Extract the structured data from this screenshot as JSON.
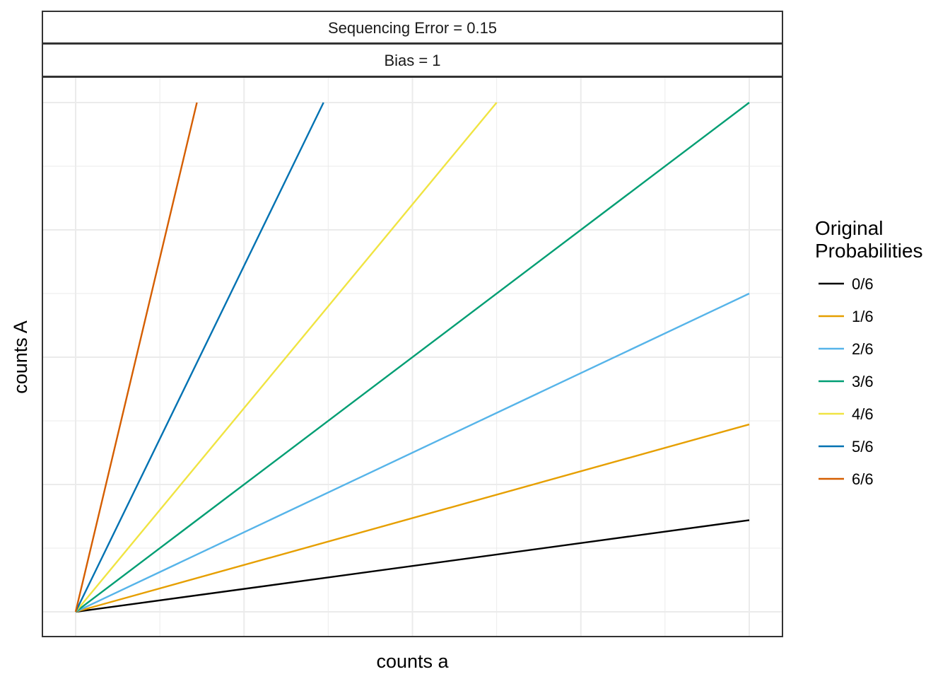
{
  "facets": {
    "top_strip": "Sequencing Error = 0.15",
    "bottom_strip": "Bias = 1"
  },
  "chart_data": {
    "type": "line",
    "xlabel": "counts a",
    "ylabel": "counts A",
    "xlim": [
      0,
      1
    ],
    "ylim": [
      0,
      1
    ],
    "grid": true,
    "legend_position": "right",
    "legend": {
      "title_lines": [
        "Original",
        "Probabilities"
      ]
    },
    "series": [
      {
        "name": "0/6",
        "color": "#000000",
        "x": [
          0,
          1
        ],
        "y": [
          0,
          0.18
        ]
      },
      {
        "name": "1/6",
        "color": "#E69F00",
        "x": [
          0,
          1
        ],
        "y": [
          0,
          0.368
        ]
      },
      {
        "name": "2/6",
        "color": "#56B4E9",
        "x": [
          0,
          1
        ],
        "y": [
          0,
          0.625
        ]
      },
      {
        "name": "3/6",
        "color": "#009E73",
        "x": [
          0,
          1
        ],
        "y": [
          0,
          1
        ]
      },
      {
        "name": "4/6",
        "color": "#F0E442",
        "x": [
          0,
          0.625
        ],
        "y": [
          0,
          1
        ]
      },
      {
        "name": "5/6",
        "color": "#0072B2",
        "x": [
          0,
          0.368
        ],
        "y": [
          0,
          1
        ]
      },
      {
        "name": "6/6",
        "color": "#D55E00",
        "x": [
          0,
          0.18
        ],
        "y": [
          0,
          1
        ]
      }
    ]
  }
}
